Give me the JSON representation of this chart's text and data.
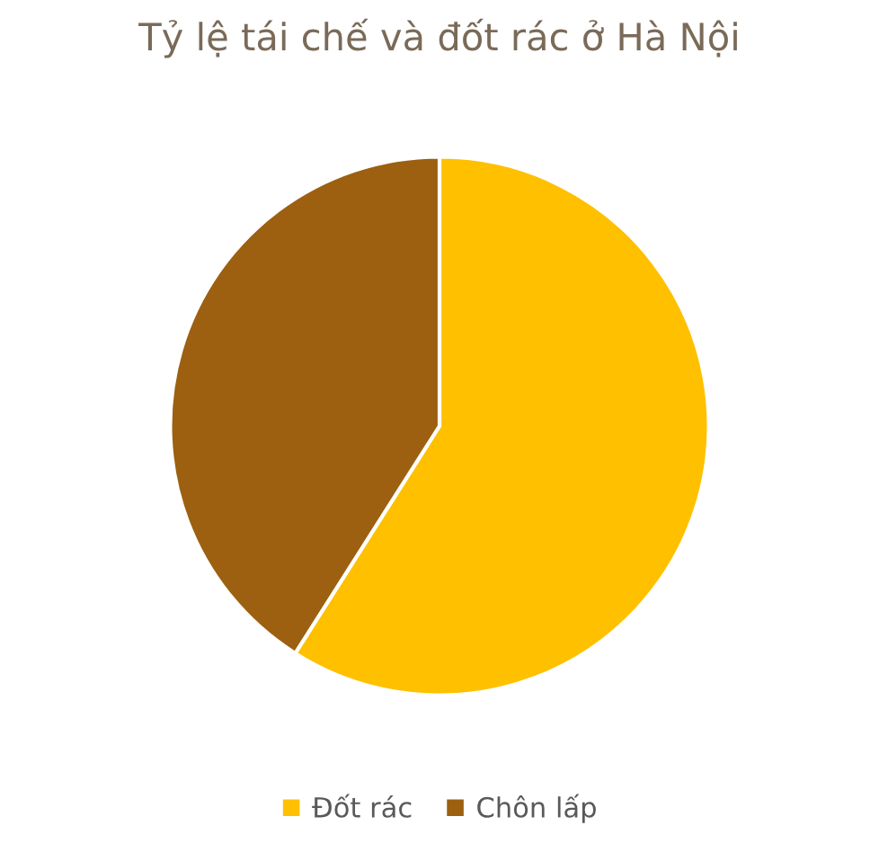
{
  "chart_data": {
    "type": "pie",
    "title": "Tỷ lệ tái chế và đốt rác ở Hà Nội",
    "categories": [
      "Đốt rác",
      "Chôn lấp"
    ],
    "values": [
      59,
      41
    ],
    "colors": [
      "#ffc000",
      "#9c6010"
    ],
    "legend": "bottom"
  }
}
